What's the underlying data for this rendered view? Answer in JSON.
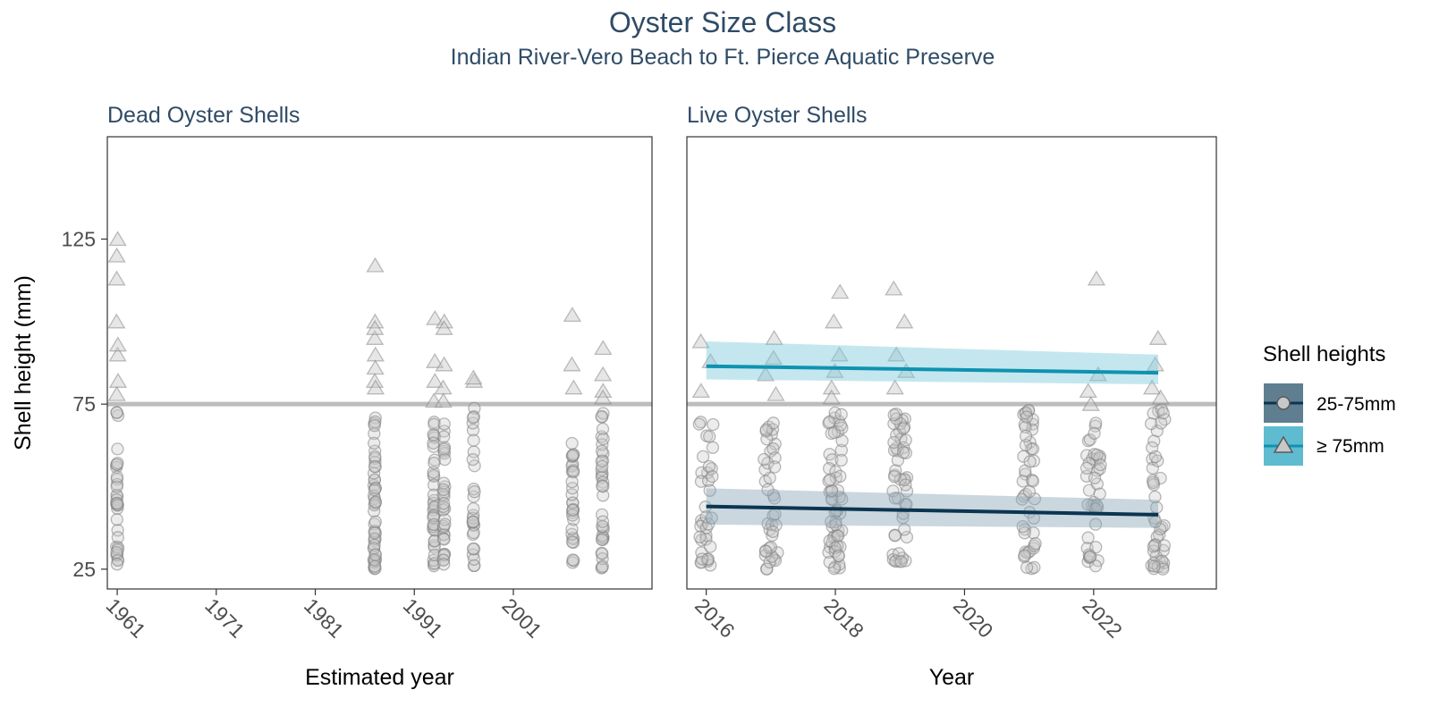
{
  "header": {
    "title": "Oyster Size Class",
    "subtitle": "Indian River-Vero Beach to Ft. Pierce Aquatic Preserve"
  },
  "legend": {
    "title": "Shell heights",
    "items": [
      {
        "label": "25-75mm",
        "shape": "circle",
        "line_color": "#0b3550",
        "fill": "#5f7f91"
      },
      {
        "label": "≥ 75mm",
        "shape": "triangle",
        "line_color": "#0f92b0",
        "fill": "#5fbbd0"
      }
    ]
  },
  "colors": {
    "small_line": "#0b3550",
    "small_ribbon": "#8aa6b6",
    "large_line": "#0f92b0",
    "large_ribbon": "#7dcadc",
    "reference_line": "#bdbdbd",
    "point_stroke": "#7f7f7f",
    "point_fill": "#c8c8c8"
  },
  "chart_data": [
    {
      "type": "scatter",
      "panel": "dead",
      "title": "Dead Oyster Shells",
      "xlabel": "Estimated year",
      "ylabel": "Shell height (mm)",
      "xlim": [
        1960,
        2015
      ],
      "ylim": [
        19,
        156
      ],
      "x_ticks": [
        1961,
        1971,
        1981,
        1991,
        2001
      ],
      "y_ticks": [
        25,
        75,
        125
      ],
      "reference_line": 75,
      "groups": [
        {
          "x": 1961,
          "small": [
            25,
            75
          ],
          "large": [
            78,
            113,
            90,
            100,
            120,
            125,
            93,
            82
          ],
          "n_small": 34
        },
        {
          "x": 1987,
          "small": [
            25,
            75
          ],
          "large": [
            82,
            100,
            117,
            90,
            95,
            80,
            98,
            86
          ],
          "n_small": 48
        },
        {
          "x": 1993,
          "small": [
            25,
            71
          ],
          "large": [
            88,
            101,
            76,
            82
          ],
          "n_small": 36
        },
        {
          "x": 1994,
          "small": [
            25,
            71
          ],
          "large": [
            87,
            100,
            98,
            76,
            80
          ],
          "n_small": 32
        },
        {
          "x": 1997,
          "small": [
            26,
            74
          ],
          "large": [
            82,
            83
          ],
          "n_small": 28
        },
        {
          "x": 2007,
          "small": [
            25,
            70
          ],
          "large": [
            102,
            87,
            80
          ],
          "n_small": 30
        },
        {
          "x": 2010,
          "small": [
            25,
            74
          ],
          "large": [
            92,
            84,
            79,
            77
          ],
          "n_small": 36
        }
      ]
    },
    {
      "type": "scatter",
      "panel": "live",
      "title": "Live Oyster Shells",
      "xlabel": "Year",
      "ylabel": "Shell height (mm)",
      "xlim": [
        2015.7,
        2023.9
      ],
      "ylim": [
        19,
        156
      ],
      "x_ticks": [
        2016,
        2018,
        2020,
        2022
      ],
      "y_ticks": [
        25,
        75,
        125
      ],
      "reference_line": 75,
      "groups": [
        {
          "x": 2016,
          "small": [
            25,
            70
          ],
          "large": [
            88,
            79,
            94
          ],
          "n_small": 36
        },
        {
          "x": 2017,
          "small": [
            25,
            71
          ],
          "large": [
            95,
            89,
            84,
            78
          ],
          "n_small": 40
        },
        {
          "x": 2018,
          "small": [
            25,
            73
          ],
          "large": [
            109,
            100,
            90,
            85,
            80,
            77
          ],
          "n_small": 60
        },
        {
          "x": 2019,
          "small": [
            27,
            74
          ],
          "large": [
            110,
            100,
            90,
            85,
            80
          ],
          "n_small": 50
        },
        {
          "x": 2021,
          "small": [
            25,
            74
          ],
          "large": [],
          "n_small": 46
        },
        {
          "x": 2022,
          "small": [
            25,
            70
          ],
          "large": [
            113,
            84,
            79,
            75
          ],
          "n_small": 40
        },
        {
          "x": 2023,
          "small": [
            25,
            74
          ],
          "large": [
            95,
            87,
            80,
            77
          ],
          "n_small": 44
        }
      ],
      "trend_small": {
        "x": [
          2016,
          2023
        ],
        "y": [
          44,
          41.5
        ],
        "ribbon_lo": [
          38.5,
          37.5
        ],
        "ribbon_hi": [
          49.5,
          46
        ]
      },
      "trend_large": {
        "x": [
          2016,
          2023
        ],
        "y": [
          86.5,
          84.5
        ],
        "ribbon_lo": [
          82.5,
          81
        ],
        "ribbon_hi": [
          94,
          90
        ]
      }
    }
  ]
}
